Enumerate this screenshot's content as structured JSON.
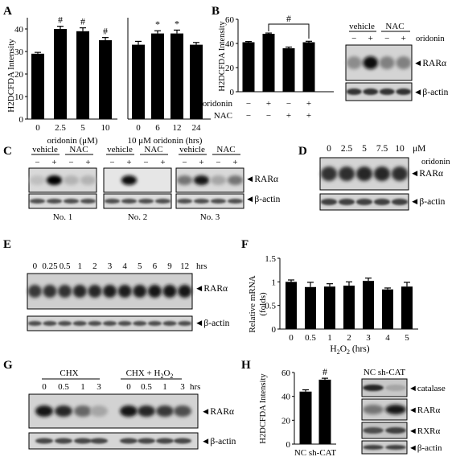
{
  "panels": {
    "A": {
      "label": "A",
      "ylabel": "H2DCFDA Intensity",
      "xgroup_left": "oridonin  (μM)",
      "xgroup_right": "10 μM oridonin  (hrs)",
      "yticks": [
        "0",
        "10",
        "20",
        "30",
        "40"
      ],
      "chart_left": {
        "categories": [
          "0",
          "2.5",
          "5",
          "10"
        ],
        "values": [
          29,
          40,
          39,
          35
        ],
        "errors": [
          0.6,
          1.2,
          1.5,
          1.2
        ],
        "marks": [
          "",
          "#",
          "#",
          "#"
        ]
      },
      "chart_right": {
        "categories": [
          "0",
          "6",
          "12",
          "24"
        ],
        "values": [
          33,
          38,
          38,
          33
        ],
        "errors": [
          1.5,
          1.2,
          1.5,
          1.0
        ],
        "marks": [
          "",
          "*",
          "*",
          ""
        ]
      }
    },
    "B": {
      "label": "B",
      "ylabel": "H2DCFDA Intensity",
      "yticks": [
        "0",
        "20",
        "40",
        "60"
      ],
      "chart": {
        "values": [
          41,
          48,
          36,
          41
        ],
        "errors": [
          0.6,
          0.6,
          1.0,
          0.8
        ],
        "sig": "#"
      },
      "rows": [
        {
          "label": "oridonin",
          "signs": [
            "−",
            "+",
            "−",
            "+"
          ]
        },
        {
          "label": "NAC",
          "signs": [
            "−",
            "−",
            "+",
            "+"
          ]
        }
      ],
      "blot": {
        "groups": [
          "vehicle",
          "NAC"
        ],
        "treat_label": "oridonin",
        "signs": [
          "−",
          "+",
          "−",
          "+"
        ],
        "bands": [
          "RARα",
          "β-actin"
        ]
      }
    },
    "C": {
      "label": "C",
      "blots": [
        {
          "groups": [
            "vehicle",
            "NAC"
          ],
          "signs": [
            "−",
            "+",
            "−",
            "+"
          ],
          "caption": "No. 1"
        },
        {
          "groups": [
            "vehicle",
            "NAC"
          ],
          "signs": [
            "−",
            "+",
            "−",
            "+"
          ],
          "caption": "No. 2"
        },
        {
          "groups": [
            "vehicle",
            "NAC"
          ],
          "signs": [
            "−",
            "+",
            "−",
            "+"
          ],
          "caption": "No. 3"
        }
      ],
      "treat_label": "oridonin",
      "bands": [
        "RARα",
        "β-actin"
      ]
    },
    "D": {
      "label": "D",
      "doses": [
        "0",
        "2.5",
        "5",
        "7.5",
        "10"
      ],
      "unit": "μM",
      "bands": [
        "RARα",
        "β-actin"
      ]
    },
    "E": {
      "label": "E",
      "times": [
        "0",
        "0.25",
        "0.5",
        "1",
        "2",
        "3",
        "4",
        "5",
        "6",
        "9",
        "12"
      ],
      "unit": "hrs",
      "bands": [
        "RARα",
        "β-actin"
      ]
    },
    "F": {
      "label": "F",
      "ylabel": "Relative mRNA (folds)",
      "yticks": [
        "0",
        "0.5",
        "1",
        "1.5"
      ],
      "xlabel": "H2O2 (hrs)",
      "chart": {
        "categories": [
          "0",
          "0.5",
          "1",
          "2",
          "3",
          "4",
          "5"
        ],
        "values": [
          1.0,
          0.89,
          0.9,
          0.92,
          1.02,
          0.84,
          0.9
        ],
        "errors": [
          0.04,
          0.1,
          0.06,
          0.08,
          0.06,
          0.03,
          0.09
        ]
      }
    },
    "G": {
      "label": "G",
      "group1": "CHX",
      "group2": "CHX + H2O2",
      "times": [
        "0",
        "0.5",
        "1",
        "3",
        "0",
        "0.5",
        "1",
        "3"
      ],
      "unit": "hrs",
      "bands": [
        "RARα",
        "β-actin"
      ]
    },
    "H": {
      "label": "H",
      "ylabel": "H2DCFDA Intensity",
      "yticks": [
        "0",
        "20",
        "40",
        "60"
      ],
      "chart": {
        "categories": [
          "NC",
          "sh-CAT"
        ],
        "values": [
          44,
          54
        ],
        "errors": [
          1.5,
          1.2
        ],
        "sig": "#"
      },
      "blot": {
        "header": "NC sh-CAT",
        "bands": [
          "catalase",
          "RARα",
          "RXRα",
          "β-actin"
        ]
      }
    }
  },
  "chart_data": [
    {
      "type": "bar",
      "title": "",
      "categories": [
        "0",
        "2.5",
        "5",
        "10"
      ],
      "values": [
        29,
        40,
        39,
        35
      ],
      "xlabel": "oridonin (μM)",
      "ylabel": "H2DCFDA Intensity",
      "ylim": [
        0,
        45
      ]
    },
    {
      "type": "bar",
      "title": "",
      "categories": [
        "0",
        "6",
        "12",
        "24"
      ],
      "values": [
        33,
        38,
        38,
        33
      ],
      "xlabel": "10 μM oridonin (hrs)",
      "ylabel": "H2DCFDA Intensity",
      "ylim": [
        0,
        45
      ]
    },
    {
      "type": "bar",
      "title": "",
      "categories": [
        "−/−",
        "+/−",
        "−/+",
        "+/+"
      ],
      "values": [
        41,
        48,
        36,
        41
      ],
      "xlabel": "oridonin / NAC",
      "ylabel": "H2DCFDA Intensity",
      "ylim": [
        0,
        60
      ]
    },
    {
      "type": "bar",
      "title": "",
      "categories": [
        "0",
        "0.5",
        "1",
        "2",
        "3",
        "4",
        "5"
      ],
      "values": [
        1.0,
        0.89,
        0.9,
        0.92,
        1.02,
        0.84,
        0.9
      ],
      "xlabel": "H2O2 (hrs)",
      "ylabel": "Relative mRNA (folds)",
      "ylim": [
        0,
        1.5
      ]
    },
    {
      "type": "bar",
      "title": "",
      "categories": [
        "NC",
        "sh-CAT"
      ],
      "values": [
        44,
        54
      ],
      "xlabel": "",
      "ylabel": "H2DCFDA Intensity",
      "ylim": [
        0,
        60
      ]
    }
  ]
}
